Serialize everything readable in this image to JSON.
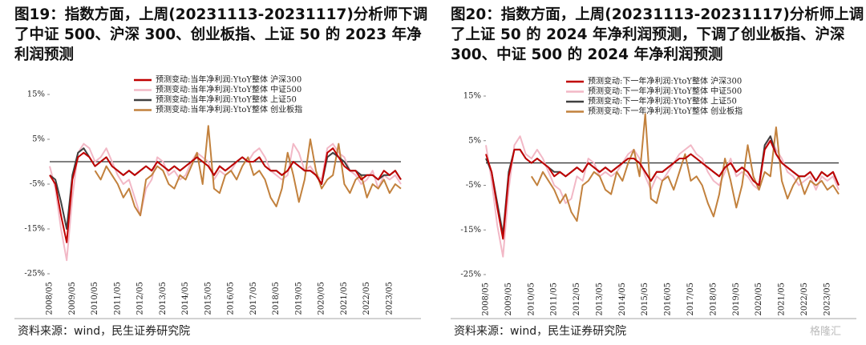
{
  "chart_data": [
    {
      "type": "line",
      "title": "图19：指数方面，上周(20231113-20231117)分析师下调了中证 500、沪深 300、创业板指、上证 50 的 2023 年净利润预测",
      "source": "资料来源：wind，民生证券研究院",
      "categories": [
        "2008/05",
        null,
        null,
        null,
        "2009/05",
        null,
        null,
        null,
        "2010/05",
        null,
        null,
        null,
        "2011/05",
        null,
        null,
        null,
        "2012/05",
        null,
        null,
        null,
        "2013/05",
        null,
        null,
        null,
        "2014/05",
        null,
        null,
        null,
        "2015/05",
        null,
        null,
        null,
        "2016/05",
        null,
        null,
        null,
        "2017/05",
        null,
        null,
        null,
        "2018/05",
        null,
        null,
        null,
        "2019/05",
        null,
        null,
        null,
        "2020/05",
        null,
        null,
        null,
        "2021/05",
        null,
        null,
        null,
        "2022/05",
        null,
        null,
        null,
        "2023/05",
        null,
        null
      ],
      "ylim": [
        -25,
        15
      ],
      "yticks": [
        {
          "value": -25,
          "label": "-25%"
        },
        {
          "value": -15,
          "label": "-15%"
        },
        {
          "value": -5,
          "label": "-5%"
        },
        {
          "value": 5,
          "label": "5%"
        },
        {
          "value": 15,
          "label": "15%"
        }
      ],
      "legend": "top",
      "series": [
        {
          "name": "预测变动:当年净利润:YtoY整体 沪深300",
          "color": "#c00000",
          "values": [
            -3,
            -5,
            -12,
            -18,
            -4,
            1,
            2,
            1,
            -1,
            0,
            1,
            -1,
            -2,
            -3,
            -2,
            -3,
            -2,
            -1,
            -2,
            0,
            -1,
            -2,
            -1,
            -2,
            -1,
            0,
            1,
            0,
            -1,
            -3,
            -1,
            -2,
            -1,
            0,
            1,
            0,
            0,
            1,
            -1,
            -2,
            -2,
            -3,
            -2,
            0,
            -1,
            -2,
            -2,
            -3,
            -5,
            2,
            3,
            1,
            -1,
            -2,
            -2,
            -4,
            -3,
            -3,
            -4,
            -2,
            -3,
            -2,
            -4
          ]
        },
        {
          "name": "预测变动:当年净利润:YtoY整体 中证500",
          "color": "#f2b8c6",
          "values": [
            -1,
            -6,
            -15,
            -22,
            -8,
            2,
            4,
            3,
            0,
            1,
            3,
            0,
            -3,
            -5,
            -4,
            -8,
            -12,
            -6,
            -4,
            1,
            0,
            -3,
            -2,
            -4,
            -3,
            0,
            2,
            1,
            0,
            -4,
            -2,
            -3,
            -2,
            0,
            1,
            0,
            2,
            3,
            1,
            -2,
            -3,
            -4,
            -3,
            4,
            2,
            -2,
            -1,
            -3,
            -4,
            3,
            4,
            2,
            1,
            -2,
            -3,
            -5,
            -4,
            -2,
            -6,
            -3,
            -4,
            -3,
            -5
          ]
        },
        {
          "name": "预测变动:当年净利润:YtoY整体 上证50",
          "color": "#404040",
          "values": [
            -3,
            -4,
            -9,
            -15,
            -3,
            2,
            3,
            1,
            -1,
            0,
            1,
            -1,
            -2,
            -3,
            -2,
            -3,
            -2,
            -1,
            -2,
            0,
            -1,
            -2,
            -1,
            -2,
            -1,
            0,
            1,
            0,
            -1,
            -3,
            -1,
            -2,
            -1,
            0,
            1,
            0,
            0,
            1,
            -1,
            -2,
            -2,
            -3,
            -2,
            0,
            -1,
            -2,
            -2,
            -3,
            -5,
            1,
            2,
            1,
            0,
            -2,
            -2,
            -3,
            -3,
            -3,
            -4,
            -3,
            -3,
            -2,
            -4
          ]
        },
        {
          "name": "预测变动:当年净利润:YtoY整体 创业板指",
          "color": "#c2813d",
          "values": [
            null,
            null,
            null,
            null,
            null,
            null,
            null,
            null,
            -2,
            -4,
            -1,
            -3,
            -5,
            -8,
            -6,
            -10,
            -12,
            -4,
            -3,
            -1,
            -2,
            -5,
            -6,
            -3,
            -4,
            -1,
            2,
            -5,
            8,
            -6,
            -7,
            -3,
            -2,
            -4,
            -1,
            1,
            -3,
            -2,
            -4,
            -8,
            -10,
            -6,
            2,
            -3,
            -9,
            -4,
            5,
            -2,
            -6,
            -4,
            -3,
            4,
            -5,
            -7,
            -4,
            -3,
            -8,
            -5,
            -6,
            -4,
            -7,
            -5,
            -6
          ]
        }
      ]
    },
    {
      "type": "line",
      "title": "图20：指数方面，上周(20231113-20231117)分析师上调了上证 50 的 2024 年净利润预测，下调了创业板指、沪深 300、中证 500 的 2024 年净利润预测",
      "source": "资料来源：wind，民生证券研究院",
      "categories": [
        "2008/05",
        null,
        null,
        null,
        "2009/05",
        null,
        null,
        null,
        "2010/05",
        null,
        null,
        null,
        "2011/05",
        null,
        null,
        null,
        "2012/05",
        null,
        null,
        null,
        "2013/05",
        null,
        null,
        null,
        "2014/05",
        null,
        null,
        null,
        "2015/05",
        null,
        null,
        null,
        "2016/05",
        null,
        null,
        null,
        "2017/05",
        null,
        null,
        null,
        "2018/05",
        null,
        null,
        null,
        "2019/05",
        null,
        null,
        null,
        "2020/05",
        null,
        null,
        null,
        "2021/05",
        null,
        null,
        null,
        "2022/05",
        null,
        null,
        null,
        "2023/05",
        null,
        null
      ],
      "ylim": [
        -25,
        15
      ],
      "yticks": [
        {
          "value": -25,
          "label": "-25%"
        },
        {
          "value": -15,
          "label": "-15%"
        },
        {
          "value": -5,
          "label": "-5%"
        },
        {
          "value": 5,
          "label": "5%"
        },
        {
          "value": 15,
          "label": "15%"
        }
      ],
      "legend": "top",
      "series": [
        {
          "name": "预测变动:下一年净利润:YtoY整体 沪深300",
          "color": "#c00000",
          "values": [
            2,
            -2,
            -10,
            -17,
            -3,
            3,
            3,
            1,
            0,
            1,
            0,
            -1,
            -3,
            -2,
            -3,
            -2,
            -1,
            -2,
            0,
            -1,
            -2,
            -1,
            -2,
            -1,
            0,
            1,
            1,
            0,
            -2,
            -4,
            -2,
            -2,
            -1,
            0,
            1,
            1,
            2,
            1,
            0,
            -1,
            -2,
            -3,
            -1,
            0,
            -2,
            -1,
            -2,
            -4,
            -5,
            3,
            5,
            2,
            0,
            -1,
            -2,
            -3,
            -3,
            -2,
            -4,
            -2,
            -3,
            -2,
            -5
          ]
        },
        {
          "name": "预测变动:下一年净利润:YtoY整体 中证500",
          "color": "#f2b8c6",
          "values": [
            4,
            -4,
            -14,
            -21,
            -6,
            4,
            6,
            2,
            1,
            3,
            1,
            -2,
            -5,
            -6,
            -9,
            -8,
            -3,
            -4,
            1,
            0,
            -3,
            -2,
            -3,
            -2,
            0,
            2,
            3,
            1,
            -3,
            -6,
            -3,
            -4,
            -2,
            0,
            2,
            3,
            4,
            2,
            1,
            -2,
            -4,
            -5,
            -2,
            1,
            -3,
            -2,
            -3,
            -5,
            -6,
            3,
            6,
            3,
            1,
            -2,
            -3,
            -5,
            -4,
            -3,
            -6,
            -3,
            -4,
            -3,
            -6
          ]
        },
        {
          "name": "预测变动:下一年净利润:YtoY整体 上证50",
          "color": "#404040",
          "values": [
            1,
            -2,
            -9,
            -16,
            -2,
            3,
            3,
            1,
            0,
            1,
            0,
            -1,
            -2,
            -2,
            -3,
            -2,
            -1,
            -2,
            0,
            -1,
            -2,
            -1,
            -2,
            -1,
            0,
            1,
            1,
            0,
            -2,
            -4,
            -2,
            -2,
            -1,
            0,
            1,
            1,
            2,
            1,
            0,
            -1,
            -2,
            -3,
            -1,
            0,
            -2,
            -1,
            -2,
            -4,
            -5,
            4,
            6,
            2,
            0,
            -1,
            -2,
            -3,
            -3,
            -2,
            -4,
            -2,
            -3,
            -2,
            -5
          ]
        },
        {
          "name": "预测变动:下一年净利润:YtoY整体 创业板指",
          "color": "#c2813d",
          "values": [
            null,
            null,
            null,
            null,
            null,
            null,
            null,
            null,
            -3,
            -5,
            -2,
            -4,
            -6,
            -9,
            -7,
            -11,
            -13,
            -5,
            -4,
            -2,
            -3,
            -6,
            -7,
            -2,
            -4,
            0,
            3,
            -3,
            11,
            -8,
            -9,
            -4,
            -3,
            -6,
            -2,
            2,
            -4,
            -3,
            -5,
            -9,
            -12,
            -7,
            1,
            -4,
            -10,
            -5,
            4,
            -3,
            -6,
            -2,
            -3,
            8,
            -4,
            -8,
            -5,
            -3,
            -7,
            -4,
            -5,
            -4,
            -6,
            -5,
            -7
          ]
        }
      ]
    }
  ],
  "watermark": "格隆汇"
}
